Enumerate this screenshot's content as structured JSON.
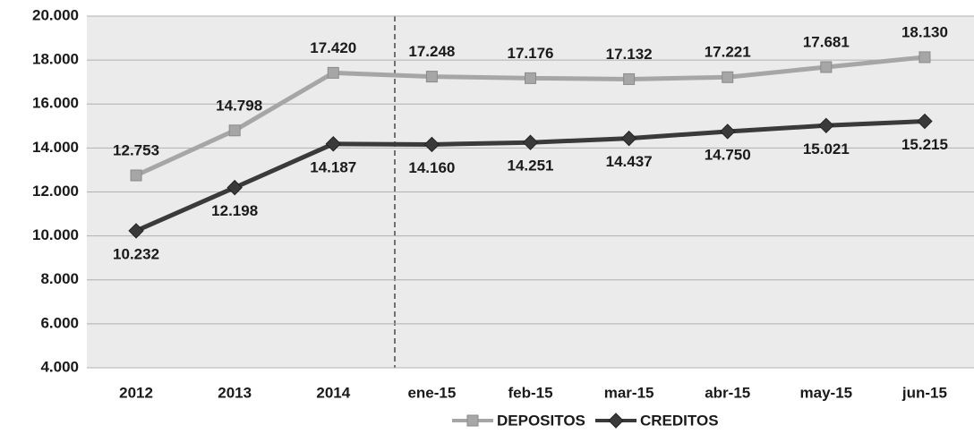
{
  "chart_data": {
    "type": "line",
    "categories": [
      "2012",
      "2013",
      "2014",
      "ene-15",
      "feb-15",
      "mar-15",
      "abr-15",
      "may-15",
      "jun-15"
    ],
    "series": [
      {
        "name": "DEPOSITOS",
        "color": "#a6a6a6",
        "marker": "square",
        "values": [
          12753,
          14798,
          17420,
          17248,
          17176,
          17132,
          17221,
          17681,
          18130
        ],
        "value_labels": [
          "12.753",
          "14.798",
          "17.420",
          "17.248",
          "17.176",
          "17.132",
          "17.221",
          "17.681",
          "18.130"
        ]
      },
      {
        "name": "CREDITOS",
        "color": "#3a3a3a",
        "marker": "diamond",
        "values": [
          10232,
          12198,
          14187,
          14160,
          14251,
          14437,
          14750,
          15021,
          15215
        ],
        "value_labels": [
          "10.232",
          "12.198",
          "14.187",
          "14.160",
          "14.251",
          "14.437",
          "14.750",
          "15.021",
          "15.215"
        ]
      }
    ],
    "ylim": [
      4000,
      20000
    ],
    "yticks": [
      {
        "value": 4000,
        "label": "4.000"
      },
      {
        "value": 6000,
        "label": "6.000"
      },
      {
        "value": 8000,
        "label": "8.000"
      },
      {
        "value": 10000,
        "label": "10.000"
      },
      {
        "value": 12000,
        "label": "12.000"
      },
      {
        "value": 14000,
        "label": "14.000"
      },
      {
        "value": 16000,
        "label": "16.000"
      },
      {
        "value": 18000,
        "label": "18.000"
      },
      {
        "value": 20000,
        "label": "20.000"
      }
    ],
    "grid": true,
    "legend": "bottom"
  }
}
